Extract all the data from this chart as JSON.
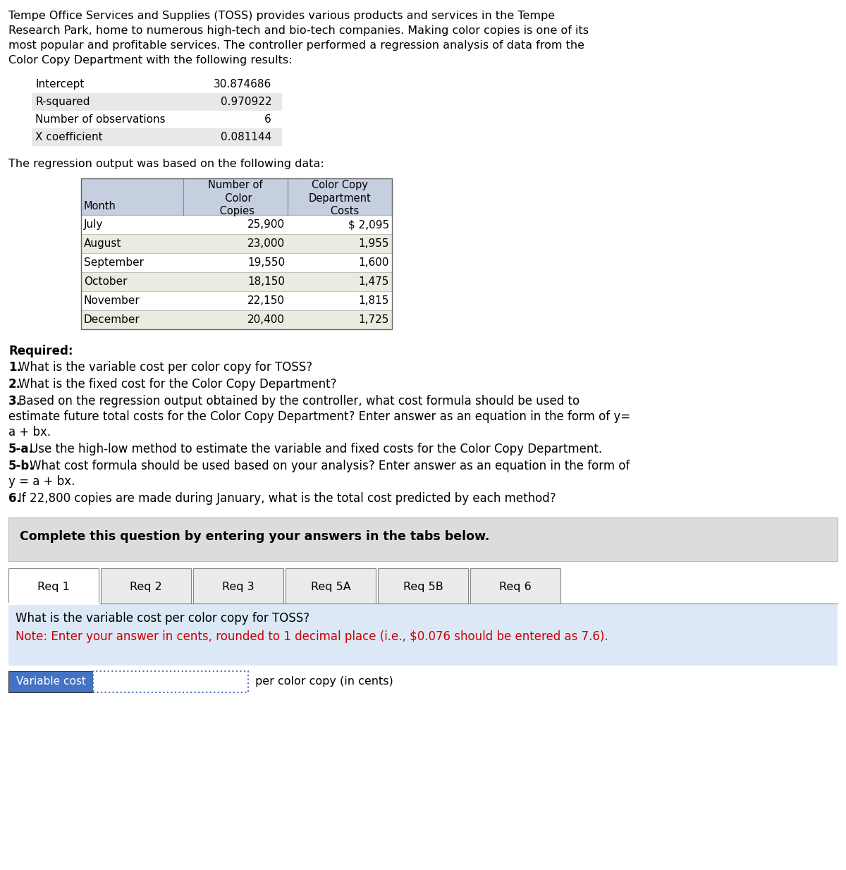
{
  "bg_color": "#ffffff",
  "intro_lines": [
    "Tempe Office Services and Supplies (TOSS) provides various products and services in the Tempe",
    "Research Park, home to numerous high-tech and bio-tech companies. Making color copies is one of its",
    "most popular and profitable services. The controller performed a regression analysis of data from the",
    "Color Copy Department with the following results:"
  ],
  "regression_labels": [
    "Intercept",
    "R-squared",
    "Number of observations",
    "X coefficient"
  ],
  "regression_values": [
    "30.874686",
    "0.970922",
    "6",
    "0.081144"
  ],
  "regression_row_colors": [
    "#ffffff",
    "#e8e8e8",
    "#ffffff",
    "#e8e8e8"
  ],
  "data_intro": "The regression output was based on the following data:",
  "table_col1_header": "Month",
  "table_col2_header": "Number of\n  Color\n Copies",
  "table_col3_header": "Color Copy\nDepartment\n   Costs",
  "table_header_color": "#c5cfe0",
  "table_rows": [
    [
      "July",
      "25,900",
      "$ 2,095"
    ],
    [
      "August",
      "23,000",
      "1,955"
    ],
    [
      "September",
      "19,550",
      "1,600"
    ],
    [
      "October",
      "18,150",
      "1,475"
    ],
    [
      "November",
      "22,150",
      "1,815"
    ],
    [
      "December",
      "20,400",
      "1,725"
    ]
  ],
  "table_row_colors": [
    "#ffffff",
    "#ebebdf",
    "#ffffff",
    "#ebebdf",
    "#ffffff",
    "#ebebdf"
  ],
  "required_label": "Required:",
  "req_items": [
    [
      "1",
      "What is the variable cost per color copy for TOSS?"
    ],
    [
      "2",
      "What is the fixed cost for the Color Copy Department?"
    ],
    [
      "3",
      "Based on the regression output obtained by the controller, what cost formula should be used to\nestimate future total costs for the Color Copy Department? Enter answer as an equation in the form of y=\na + bx."
    ],
    [
      "5-a",
      "Use the high-low method to estimate the variable and fixed costs for the Color Copy Department."
    ],
    [
      "5-b",
      "What cost formula should be used based on your analysis? Enter answer as an equation in the form of\ny = a + bx."
    ],
    [
      "6",
      "If 22,800 copies are made during January, what is the total cost predicted by each method?"
    ]
  ],
  "complete_box_text": "Complete this question by entering your answers in the tabs below.",
  "complete_box_bg": "#dcdcdc",
  "tabs": [
    "Req 1",
    "Req 2",
    "Req 3",
    "Req 5A",
    "Req 5B",
    "Req 6"
  ],
  "active_tab": 0,
  "content_bg": "#dce8f5",
  "content_text": "What is the variable cost per color copy for TOSS?",
  "content_note_color": "#cc0000",
  "content_note": "Note: Enter your answer in cents, rounded to 1 decimal place (i.e., $0.076 should be entered as 7.6).",
  "input_label": "Variable cost",
  "input_label_bg": "#4472c4",
  "input_label_color": "#ffffff",
  "input_suffix": "per color copy (in cents)"
}
